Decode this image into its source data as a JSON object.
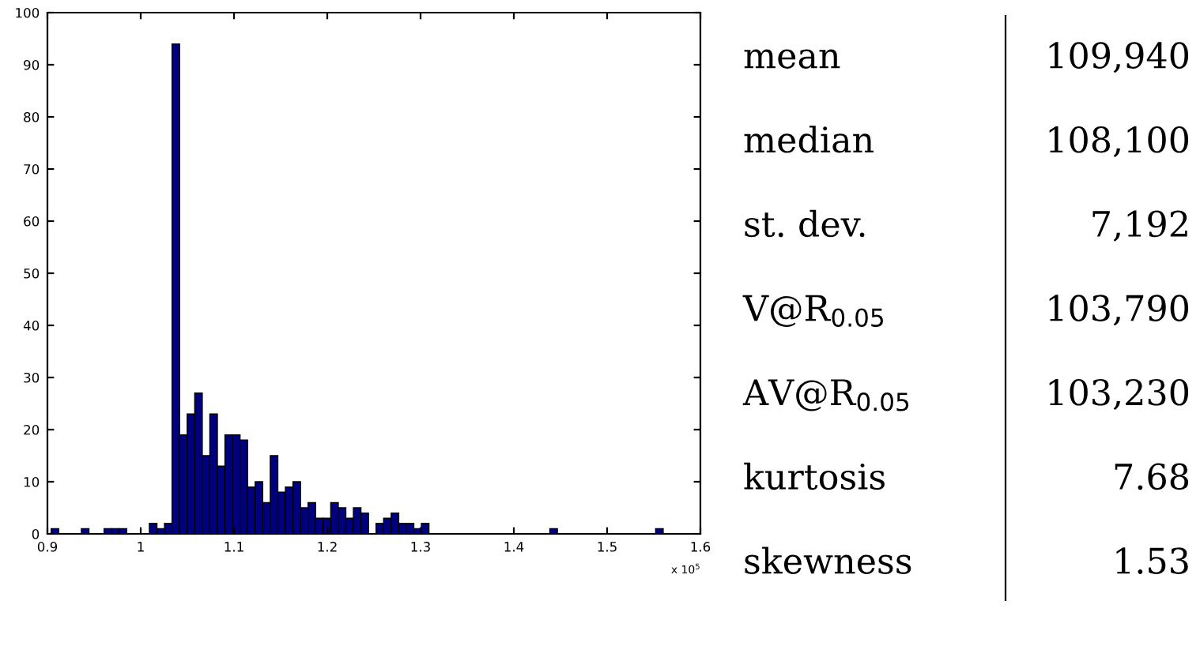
{
  "chart_data": [
    {
      "type": "histogram",
      "color": "#00007f",
      "bins": [
        0.904,
        0.9121,
        0.9202,
        0.9283,
        0.9364,
        0.9445,
        0.9526,
        0.9607,
        0.9688,
        0.9769,
        0.985,
        0.9931,
        1.0012,
        1.0093,
        1.0174,
        1.0255,
        1.0336,
        1.0417,
        1.0498,
        1.0579,
        1.066,
        1.0741,
        1.0822,
        1.0903,
        1.0984,
        1.1065,
        1.1146,
        1.1227,
        1.1308,
        1.1389,
        1.147,
        1.1551,
        1.1632,
        1.1713,
        1.1794,
        1.1875,
        1.1956,
        1.2037,
        1.2118,
        1.2199,
        1.228,
        1.2361,
        1.2442,
        1.2523,
        1.2604,
        1.2685,
        1.2766,
        1.2847,
        1.2928,
        1.3009,
        1.309,
        1.3171,
        1.3252,
        1.3333,
        1.3414,
        1.3495,
        1.3576,
        1.3657,
        1.3738,
        1.3819,
        1.39,
        1.3981,
        1.4062,
        1.4143,
        1.4224,
        1.4305,
        1.4386,
        1.4467,
        1.4548,
        1.4629,
        1.471,
        1.4791,
        1.4872,
        1.4953,
        1.5034,
        1.5115,
        1.5196,
        1.5277,
        1.5358,
        1.5439,
        1.552,
        1.5601
      ],
      "values": [
        1,
        0,
        0,
        0,
        1,
        0,
        0,
        1,
        1,
        1,
        0,
        0,
        0,
        2,
        1,
        2,
        94,
        19,
        23,
        27,
        15,
        23,
        13,
        19,
        19,
        18,
        9,
        10,
        6,
        15,
        8,
        9,
        10,
        5,
        6,
        3,
        3,
        6,
        5,
        3,
        5,
        4,
        0,
        2,
        3,
        4,
        2,
        2,
        1,
        2,
        0,
        0,
        0,
        0,
        0,
        0,
        0,
        0,
        0,
        0,
        0,
        0,
        0,
        0,
        0,
        0,
        1,
        0,
        0,
        0,
        0,
        0,
        0,
        0,
        0,
        0,
        0,
        0,
        0,
        0,
        1
      ],
      "xlim": [
        0.9,
        1.6
      ],
      "xticks": [
        0.9,
        {
          "value": 1.0,
          "label": "1"
        },
        1.1,
        1.2,
        1.3,
        1.4,
        1.5,
        1.6
      ],
      "ylim": [
        0,
        100
      ],
      "yticks": [
        0,
        10,
        20,
        30,
        40,
        50,
        60,
        70,
        80,
        90,
        100
      ],
      "grid": false,
      "annotations": [
        "x 10$^{5}$"
      ]
    },
    {
      "type": "other",
      "categories": [
        "mean",
        "median",
        "st. dev.",
        "V@R$_{0.05}$",
        "AV@R$_{0.05}$",
        "kurtosis",
        "skewness"
      ],
      "value_labels": [
        "109,940",
        "108,100",
        "7,192",
        "103,790",
        "103,230",
        "7.68",
        "1.53"
      ]
    }
  ]
}
